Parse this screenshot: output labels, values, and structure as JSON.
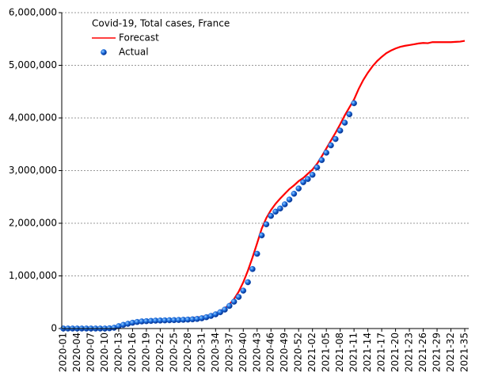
{
  "chart_data": {
    "type": "line",
    "title": "Covid-19, Total cases, France",
    "categories": [
      "2020-01",
      null,
      null,
      "2020-04",
      null,
      null,
      "2020-07",
      null,
      null,
      "2020-10",
      null,
      null,
      "2020-13",
      null,
      null,
      "2020-16",
      null,
      null,
      "2020-19",
      null,
      null,
      "2020-22",
      null,
      null,
      "2020-25",
      null,
      null,
      "2020-28",
      null,
      null,
      "2020-31",
      null,
      null,
      "2020-34",
      null,
      null,
      "2020-37",
      null,
      null,
      "2020-40",
      null,
      null,
      "2020-43",
      null,
      null,
      "2020-46",
      null,
      null,
      "2020-49",
      null,
      null,
      "2020-52",
      null,
      null,
      "2021-02",
      null,
      null,
      "2021-05",
      null,
      null,
      "2021-08",
      null,
      null,
      "2021-11",
      null,
      null,
      "2021-14",
      null,
      null,
      "2021-17",
      null,
      null,
      "2021-20",
      null,
      null,
      "2021-23",
      null,
      null,
      "2021-26",
      null,
      null,
      "2021-29",
      null,
      null,
      "2021-32",
      null,
      null,
      "2021-35"
    ],
    "series": [
      {
        "name": "Forecast",
        "color": "#ff0000",
        "style": "line",
        "values": [
          0,
          0,
          0,
          0,
          0,
          0,
          0,
          0,
          0,
          0,
          5000,
          20000,
          50000,
          75000,
          95000,
          112000,
          125000,
          135000,
          142000,
          148000,
          153000,
          158000,
          163000,
          168000,
          173000,
          178000,
          185000,
          192000,
          200000,
          210000,
          222000,
          240000,
          262000,
          290000,
          330000,
          385000,
          460000,
          560000,
          700000,
          880000,
          1100000,
          1350000,
          1620000,
          1900000,
          2100000,
          2250000,
          2370000,
          2470000,
          2560000,
          2650000,
          2720000,
          2800000,
          2860000,
          2940000,
          3020000,
          3130000,
          3270000,
          3420000,
          3570000,
          3720000,
          3880000,
          4050000,
          4200000,
          4350000,
          4550000,
          4720000,
          4860000,
          4980000,
          5080000,
          5160000,
          5230000,
          5280000,
          5320000,
          5350000,
          5370000,
          5385000,
          5400000,
          5415000,
          5425000,
          5420000,
          5440000,
          5440000,
          5440000,
          5440000,
          5440000,
          5445000,
          5450000,
          5465000
        ]
      },
      {
        "name": "Actual",
        "color": "#1060d0",
        "style": "dots",
        "values": [
          0,
          0,
          0,
          0,
          0,
          0,
          0,
          0,
          0,
          0,
          5000,
          15000,
          45000,
          70000,
          90000,
          110000,
          125000,
          135000,
          140000,
          145000,
          150000,
          152000,
          155000,
          158000,
          160000,
          163000,
          166000,
          170000,
          175000,
          182000,
          195000,
          215000,
          240000,
          270000,
          310000,
          360000,
          430000,
          510000,
          600000,
          720000,
          880000,
          1130000,
          1420000,
          1770000,
          1980000,
          2140000,
          2220000,
          2280000,
          2360000,
          2450000,
          2560000,
          2660000,
          2780000,
          2840000,
          2920000,
          3060000,
          3200000,
          3340000,
          3480000,
          3600000,
          3760000,
          3910000,
          4070000,
          4280000,
          null,
          null,
          null,
          null,
          null,
          null,
          null,
          null,
          null,
          null,
          null,
          null,
          null,
          null,
          null,
          null,
          null,
          null,
          null,
          null,
          null,
          null,
          null,
          null
        ]
      }
    ],
    "ylim": [
      0,
      6000000
    ],
    "yticks": [
      0,
      {
        "value": 1000000,
        "label": "1,000,000"
      },
      {
        "value": 2000000,
        "label": "2,000,000"
      },
      {
        "value": 3000000,
        "label": "3,000,000"
      },
      {
        "value": 4000000,
        "label": "4,000,000"
      },
      {
        "value": 5000000,
        "label": "5,000,000"
      },
      {
        "value": 6000000,
        "label": "6,000,000"
      }
    ],
    "grid": true
  }
}
